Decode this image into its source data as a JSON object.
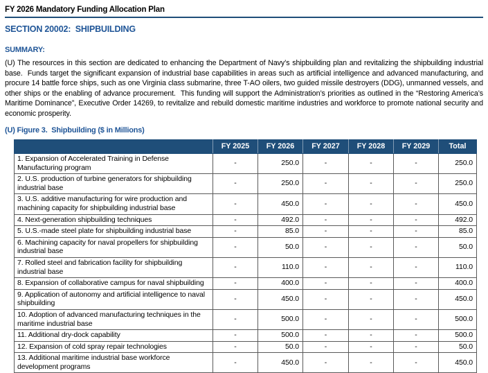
{
  "page": {
    "title": "FY 2026 Mandatory Funding Allocation Plan",
    "section_heading": "SECTION 20002:  SHIPBUILDING",
    "summary_heading": "SUMMARY:",
    "summary_text": "(U) The resources in this section are dedicated to enhancing the Department of Navy’s shipbuilding plan and revitalizing the shipbuilding industrial base.  Funds target the significant expansion of industrial base capabilities in areas such as artificial intelligence and advanced manufacturing, and procure 14 battle force ships, such as one Virginia class submarine, three T-AO oilers, two guided missile destroyers (DDG), unmanned vessels, and other ships or the enabling of advance procurement.  This funding will support the Administration’s priorities as outlined in the “Restoring America’s Maritime Dominance”, Executive Order 14269, to revitalize and rebuild domestic maritime industries and workforce to promote national security and economic prosperity.",
    "figure_caption": "(U) Figure 3.  Shipbuilding ($ in Millions)"
  },
  "colors": {
    "heading_blue": "#1F5597",
    "table_header_bg": "#1F4E79",
    "table_header_text": "#FFFFFF",
    "title_rule": "#1F4E79",
    "table_border": "#595959"
  },
  "table": {
    "columns": [
      "",
      "FY 2025",
      "FY 2026",
      "FY 2027",
      "FY 2028",
      "FY 2029",
      "Total"
    ],
    "rows": [
      {
        "label": "1. Expansion of Accelerated Training in Defense Manufacturing program",
        "values": [
          "-",
          "250.0",
          "-",
          "-",
          "-",
          "250.0"
        ]
      },
      {
        "label": "2. U.S. production of turbine generators for shipbuilding industrial base",
        "values": [
          "-",
          "250.0",
          "-",
          "-",
          "-",
          "250.0"
        ]
      },
      {
        "label": "3. U.S. additive manufacturing for wire production and machining capacity for shipbuilding industrial base",
        "values": [
          "-",
          "450.0",
          "-",
          "-",
          "-",
          "450.0"
        ]
      },
      {
        "label": "4. Next-generation shipbuilding techniques",
        "values": [
          "-",
          "492.0",
          "-",
          "-",
          "-",
          "492.0"
        ]
      },
      {
        "label": "5. U.S.-made steel plate for shipbuilding industrial base",
        "values": [
          "-",
          "85.0",
          "-",
          "-",
          "-",
          "85.0"
        ]
      },
      {
        "label": "6. Machining capacity for naval propellers for shipbuilding industrial base",
        "values": [
          "-",
          "50.0",
          "-",
          "-",
          "-",
          "50.0"
        ]
      },
      {
        "label": "7. Rolled steel and fabrication facility for shipbuilding industrial base",
        "values": [
          "-",
          "110.0",
          "-",
          "-",
          "-",
          "110.0"
        ]
      },
      {
        "label": "8. Expansion of collaborative campus for naval shipbuilding",
        "values": [
          "-",
          "400.0",
          "-",
          "-",
          "-",
          "400.0"
        ]
      },
      {
        "label": "9. Application of autonomy and artificial intelligence to naval shipbuilding",
        "values": [
          "-",
          "450.0",
          "-",
          "-",
          "-",
          "450.0"
        ]
      },
      {
        "label": "10. Adoption of advanced manufacturing techniques in the maritime industrial base",
        "values": [
          "-",
          "500.0",
          "-",
          "-",
          "-",
          "500.0"
        ]
      },
      {
        "label": "11. Additional dry-dock capability",
        "values": [
          "-",
          "500.0",
          "-",
          "-",
          "-",
          "500.0"
        ]
      },
      {
        "label": "12. Expansion of cold spray repair technologies",
        "values": [
          "-",
          "50.0",
          "-",
          "-",
          "-",
          "50.0"
        ]
      },
      {
        "label": "13. Additional maritime industrial base workforce development programs",
        "values": [
          "-",
          "450.0",
          "-",
          "-",
          "-",
          "450.0"
        ]
      }
    ]
  }
}
